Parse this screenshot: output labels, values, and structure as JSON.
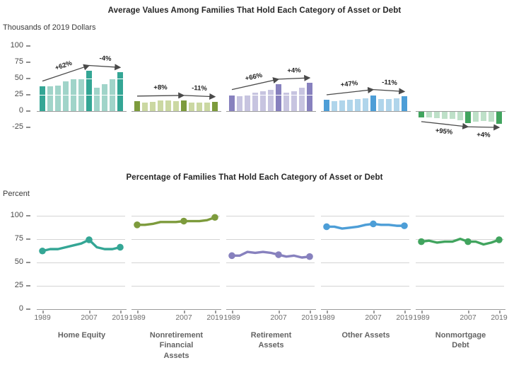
{
  "colors": {
    "background": "#ffffff",
    "axis": "#9b9b9b",
    "gridline": "#d4d4d4",
    "title_text": "#262626",
    "tick_text": "#4a4a4a",
    "year_text": "#6e6e6e",
    "category_text": "#636363",
    "annotation_arrow": "#4a4a4a",
    "annotation_text": "#1f1f1f",
    "teal": "#34A695",
    "olive": "#7D9B3C",
    "purple": "#8781BE",
    "blue": "#4D9ED7",
    "green": "#41A45E"
  },
  "top_panel": {
    "title": "Average Values Among Families That Hold Each Category of Asset or Debt",
    "unit_label": "Thousands of 2019 Dollars",
    "y_ticks": [
      100,
      75,
      50,
      25,
      0,
      -25
    ]
  },
  "bottom_panel": {
    "title": "Percentage of Families That Hold Each Category of Asset or Debt",
    "unit_label": "Percent",
    "y_ticks": [
      100,
      75,
      50,
      25,
      0
    ],
    "x_tick_labels": [
      "1989",
      "2007",
      "2019"
    ]
  },
  "chart_data": [
    {
      "type": "bar",
      "title": "Average Values Among Families That Hold Each Category of Asset or Debt",
      "ylabel": "Thousands of 2019 Dollars",
      "ylim": [
        -30,
        105
      ],
      "grid": "white horizontal lines overlaid on bars at 25, 50, 75",
      "x": [
        1989,
        1992,
        1995,
        1998,
        2001,
        2004,
        2007,
        2010,
        2013,
        2016,
        2019
      ],
      "highlight_x": [
        1989,
        2007,
        2019
      ],
      "series": [
        {
          "name": "Home Equity",
          "label_lines": [
            "Home Equity"
          ],
          "color_dark": "#34A695",
          "color_light": "#A0D4C9",
          "values": [
            38,
            38,
            39,
            45,
            48,
            50,
            62,
            35,
            41,
            48,
            59
          ],
          "annotations": [
            {
              "label": "+62%",
              "from_year": 1989,
              "to_year": 2007
            },
            {
              "label": "-4%",
              "from_year": 2007,
              "to_year": 2019
            }
          ]
        },
        {
          "name": "Nonretirement Financial Assets",
          "label_lines": [
            "Nonretirement",
            "Financial",
            "Assets"
          ],
          "color_dark": "#7D9B3C",
          "color_light": "#CBD8A2",
          "values": [
            15,
            13,
            14,
            16,
            16,
            15,
            16,
            13,
            13,
            13,
            14
          ],
          "annotations": [
            {
              "label": "+8%",
              "from_year": 1989,
              "to_year": 2007
            },
            {
              "label": "-11%",
              "from_year": 2007,
              "to_year": 2019
            }
          ]
        },
        {
          "name": "Retirement Assets",
          "label_lines": [
            "Retirement",
            "Assets"
          ],
          "color_dark": "#8781BE",
          "color_light": "#C7C4E0",
          "values": [
            25,
            22,
            25,
            28,
            30,
            32,
            41,
            28,
            30,
            35,
            43
          ],
          "annotations": [
            {
              "label": "+66%",
              "from_year": 1989,
              "to_year": 2007
            },
            {
              "label": "+4%",
              "from_year": 2007,
              "to_year": 2019
            }
          ]
        },
        {
          "name": "Other Assets",
          "label_lines": [
            "Other Assets"
          ],
          "color_dark": "#4D9ED7",
          "color_light": "#B0D5EB",
          "values": [
            17,
            15,
            16,
            17,
            18,
            19,
            25,
            18,
            18,
            19,
            22
          ],
          "annotations": [
            {
              "label": "+47%",
              "from_year": 1989,
              "to_year": 2007
            },
            {
              "label": "-11%",
              "from_year": 2007,
              "to_year": 2019
            }
          ]
        },
        {
          "name": "Nonmortgage Debt",
          "label_lines": [
            "Nonmortgage",
            "Debt"
          ],
          "color_dark": "#41A45E",
          "color_light": "#BEE0C8",
          "values": [
            -9,
            -9,
            -10,
            -11,
            -11,
            -13,
            -17,
            -15,
            -14,
            -15,
            -18
          ],
          "annotations": [
            {
              "label": "+95%",
              "from_year": 1989,
              "to_year": 2007
            },
            {
              "label": "+4%",
              "from_year": 2007,
              "to_year": 2019
            }
          ]
        }
      ]
    },
    {
      "type": "line",
      "title": "Percentage of Families That Hold Each Category of Asset or Debt",
      "ylabel": "Percent",
      "ylim": [
        0,
        105
      ],
      "grid": "gray horizontal lines at 25, 50, 75, 100",
      "legend_position": "none",
      "x": [
        1989,
        1992,
        1995,
        1998,
        2001,
        2004,
        2007,
        2010,
        2013,
        2016,
        2019
      ],
      "marker_x": [
        1989,
        2007,
        2019
      ],
      "x_tick_labels": [
        "1989",
        "2007",
        "2019"
      ],
      "series": [
        {
          "name": "Home Equity",
          "color": "#34A695",
          "values": [
            62,
            64,
            64,
            66,
            68,
            70,
            74,
            66,
            64,
            64,
            66
          ]
        },
        {
          "name": "Nonretirement Financial Assets",
          "color": "#7D9B3C",
          "values": [
            90,
            90,
            91,
            93,
            93,
            93,
            94,
            94,
            94,
            95,
            98
          ]
        },
        {
          "name": "Retirement Assets",
          "color": "#8781BE",
          "values": [
            57,
            57,
            61,
            60,
            61,
            60,
            58,
            56,
            57,
            55,
            56
          ]
        },
        {
          "name": "Other Assets",
          "color": "#4D9ED7",
          "values": [
            88,
            88,
            86,
            87,
            88,
            90,
            91,
            90,
            90,
            89,
            89
          ]
        },
        {
          "name": "Nonmortgage Debt",
          "color": "#41A45E",
          "values": [
            72,
            73,
            71,
            72,
            72,
            75,
            72,
            72,
            69,
            71,
            74
          ]
        }
      ]
    }
  ]
}
